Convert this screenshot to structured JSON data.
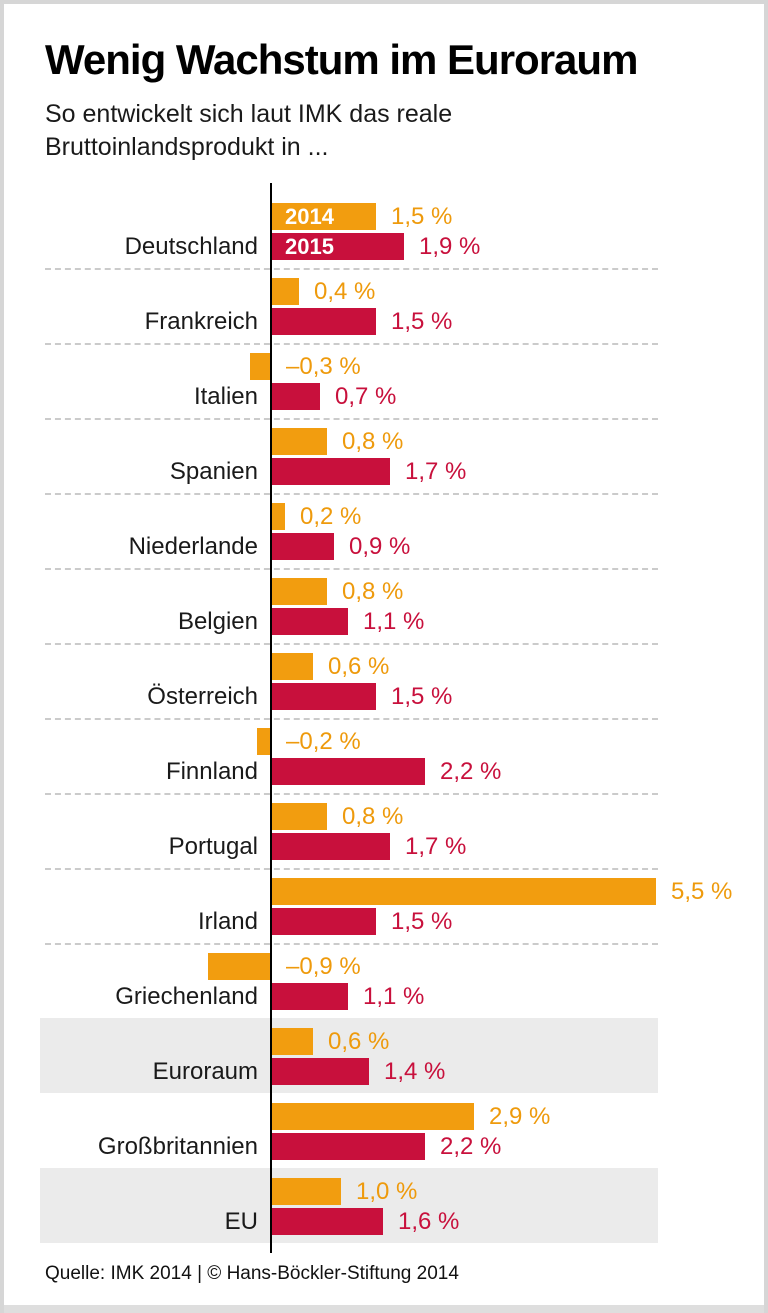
{
  "header": {
    "title": "Wenig Wachstum im Euroraum",
    "subtitle": {
      "line1": "So entwickelt sich laut IMK das reale",
      "line2": "Bruttoinlandsprodukt in ..."
    }
  },
  "footer": {
    "source": "Quelle: IMK 2014 | © Hans-Böckler-Stiftung 2014"
  },
  "colors": {
    "series_2014": "#F29D0F",
    "series_2015": "#C8103C",
    "highlight_band": "#EBEBEB",
    "separator": "#CBCBCB",
    "axis": "#000000"
  },
  "chart_data": {
    "type": "bar",
    "orientation": "horizontal",
    "unit": "%",
    "title": "Wenig Wachstum im Euroraum",
    "xlabel": "",
    "ylabel": "",
    "xlim": [
      -1.0,
      5.5
    ],
    "grid": "dashed-row-separators",
    "legend_position": "inside-first-bars",
    "categories": [
      "Deutschland",
      "Frankreich",
      "Italien",
      "Spanien",
      "Niederlande",
      "Belgien",
      "Österreich",
      "Finnland",
      "Portugal",
      "Irland",
      "Griechenland",
      "Euroraum",
      "Großbritannien",
      "EU"
    ],
    "series": [
      {
        "name": "2014",
        "color": "#F29D0F",
        "values": [
          1.5,
          0.4,
          -0.3,
          0.8,
          0.2,
          0.8,
          0.6,
          -0.2,
          0.8,
          5.5,
          -0.9,
          0.6,
          2.9,
          1.0
        ],
        "labels": [
          "1,5 %",
          "0,4 %",
          "–0,3 %",
          "0,8 %",
          "0,2 %",
          "0,8 %",
          "0,6 %",
          "–0,2 %",
          "0,8 %",
          "5,5 %",
          "–0,9 %",
          "0,6 %",
          "2,9 %",
          "1,0 %"
        ]
      },
      {
        "name": "2015",
        "color": "#C8103C",
        "values": [
          1.9,
          1.5,
          0.7,
          1.7,
          0.9,
          1.1,
          1.5,
          2.2,
          1.7,
          1.5,
          1.1,
          1.4,
          2.2,
          1.6
        ],
        "labels": [
          "1,9 %",
          "1,5 %",
          "0,7 %",
          "1,7 %",
          "0,9 %",
          "1,1 %",
          "1,5 %",
          "2,2 %",
          "1,7 %",
          "1,5 %",
          "1,1 %",
          "1,4 %",
          "2,2 %",
          "1,6 %"
        ]
      }
    ],
    "highlighted_categories": [
      "Euroraum",
      "EU"
    ],
    "row_separators_after": [
      0,
      1,
      2,
      3,
      4,
      5,
      6,
      7,
      8,
      9
    ]
  }
}
